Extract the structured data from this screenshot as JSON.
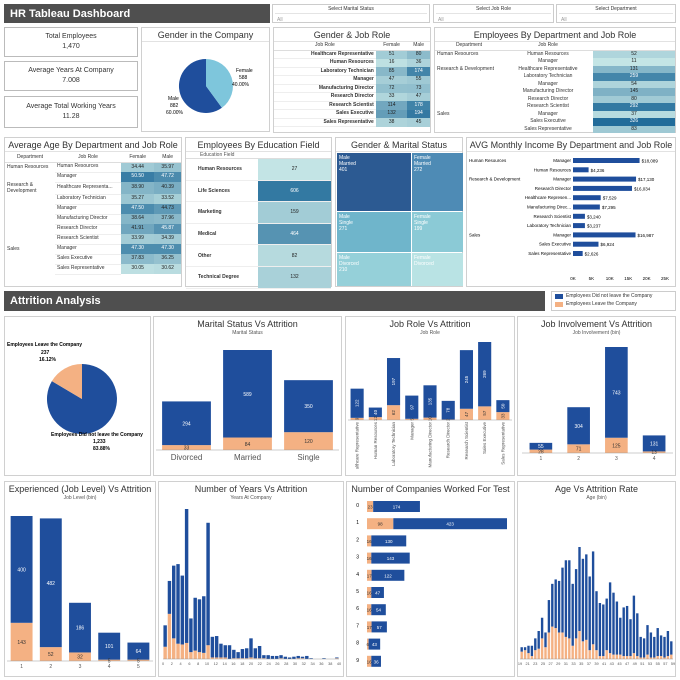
{
  "header": {
    "title": "HR Tableau Dashboard"
  },
  "filters": [
    {
      "label": "Select Marital Status",
      "value": "All"
    },
    {
      "label": "Select Job Role",
      "value": "All"
    },
    {
      "label": "Select Department",
      "value": "All"
    }
  ],
  "kpis": [
    {
      "label": "Total Employees",
      "value": "1,470"
    },
    {
      "label": "Average Years At Company",
      "value": "7.008"
    },
    {
      "label": "Average Total Working Years",
      "value": "11.28"
    }
  ],
  "colors": {
    "navy": "#1f4e9c",
    "orange": "#f4b183",
    "teal1": "#a8dfe0",
    "teal2": "#6fb7cc",
    "teal3": "#3f86a6",
    "dark": "#1f497d"
  },
  "gender_company": {
    "title": "Gender in the Company",
    "female": {
      "label": "Female",
      "count": "588",
      "pct": "40.00%"
    },
    "male": {
      "label": "Male",
      "count": "882",
      "pct": "60.00%"
    }
  },
  "gender_job": {
    "title": "Gender & Job Role",
    "headers": [
      "Job Role",
      "Female",
      "Male"
    ],
    "rows": [
      [
        "Healthcare Representative",
        "51",
        "80"
      ],
      [
        "Human Resources",
        "16",
        "36"
      ],
      [
        "Laboratory Technician",
        "85",
        "174"
      ],
      [
        "Manager",
        "47",
        "55"
      ],
      [
        "Manufacturing Director",
        "72",
        "73"
      ],
      [
        "Research Director",
        "33",
        "47"
      ],
      [
        "Research Scientist",
        "114",
        "178"
      ],
      [
        "Sales Executive",
        "132",
        "194"
      ],
      [
        "Sales Representative",
        "38",
        "45"
      ]
    ]
  },
  "emp_dept_role": {
    "title": "Employees By Department and Job Role",
    "headers": [
      "Department",
      "Job Role",
      ""
    ],
    "rows": [
      [
        "Human Resources",
        "Human Resources",
        "52"
      ],
      [
        "",
        "Manager",
        "11"
      ],
      [
        "Research & Development",
        "Healthcare Representative",
        "131"
      ],
      [
        "",
        "Laboratory Technician",
        "259"
      ],
      [
        "",
        "Manager",
        "54"
      ],
      [
        "",
        "Manufacturing Director",
        "145"
      ],
      [
        "",
        "Research Director",
        "80"
      ],
      [
        "",
        "Research Scientist",
        "292"
      ],
      [
        "Sales",
        "Manager",
        "37"
      ],
      [
        "",
        "Sales Executive",
        "326"
      ],
      [
        "",
        "Sales Representative",
        "83"
      ]
    ]
  },
  "age_dept_role": {
    "title": "Average Age By Department and Job Role",
    "headers": [
      "Department",
      "Job Role",
      "Female",
      "Male"
    ],
    "rows": [
      [
        "Human Resources",
        "Human Resources",
        "34.44",
        "35.97"
      ],
      [
        "",
        "Manager",
        "50.50",
        "47.72"
      ],
      [
        "Research & Development",
        "Healthcare Representa...",
        "38.90",
        "40.39"
      ],
      [
        "",
        "Laboratory Technician",
        "35.27",
        "33.52"
      ],
      [
        "",
        "Manager",
        "47.50",
        "44.73"
      ],
      [
        "",
        "Manufacturing Director",
        "38.64",
        "37.96"
      ],
      [
        "",
        "Research Director",
        "41.91",
        "45.87"
      ],
      [
        "",
        "Research Scientist",
        "33.99",
        "34.39"
      ],
      [
        "Sales",
        "Manager",
        "47.30",
        "47.30"
      ],
      [
        "",
        "Sales Executive",
        "37.83",
        "36.25"
      ],
      [
        "",
        "Sales Representative",
        "30.05",
        "30.62"
      ]
    ]
  },
  "edu_field": {
    "title": "Employees By Education Field",
    "header": "Education Field",
    "rows": [
      [
        "Human Resources",
        "27"
      ],
      [
        "Life Sciences",
        "606"
      ],
      [
        "Marketing",
        "159"
      ],
      [
        "Medical",
        "464"
      ],
      [
        "Other",
        "82"
      ],
      [
        "Technical Degree",
        "132"
      ]
    ]
  },
  "gender_marital": {
    "title": "Gender & Marital Status",
    "cells": [
      {
        "line1": "Male",
        "line2": "Married",
        "value": "401"
      },
      {
        "line1": "Female",
        "line2": "Married",
        "value": "272"
      },
      {
        "line1": "Male",
        "line2": "Single",
        "value": "271"
      },
      {
        "line1": "Female",
        "line2": "Single",
        "value": "199"
      },
      {
        "line1": "Male",
        "line2": "Divorced",
        "value": "210"
      },
      {
        "line1": "Female",
        "line2": "Divorced",
        "value": ""
      }
    ]
  },
  "income": {
    "title": "AVG Monthly Income By Department and Job Role",
    "headers": [
      "Department",
      "Job Role"
    ],
    "rows": [
      {
        "dept": "Human Resources",
        "role": "Manager",
        "value": 18089,
        "label": "$18,089"
      },
      {
        "dept": "",
        "role": "Human Resources",
        "value": 4236,
        "label": "$4,236"
      },
      {
        "dept": "Research & Development",
        "role": "Manager",
        "value": 17130,
        "label": "$17,130"
      },
      {
        "dept": "",
        "role": "Research Director",
        "value": 16034,
        "label": "$16,034"
      },
      {
        "dept": "",
        "role": "Healthcare Represen...",
        "value": 7529,
        "label": "$7,529"
      },
      {
        "dept": "",
        "role": "Manufacturing Direc...",
        "value": 7295,
        "label": "$7,295"
      },
      {
        "dept": "",
        "role": "Research Scientist",
        "value": 3240,
        "label": "$3,240"
      },
      {
        "dept": "",
        "role": "Laboratory Technician",
        "value": 3237,
        "label": "$3,237"
      },
      {
        "dept": "Sales",
        "role": "Manager",
        "value": 16987,
        "label": "$16,987"
      },
      {
        "dept": "",
        "role": "Sales Executive",
        "value": 6924,
        "label": "$6,924"
      },
      {
        "dept": "",
        "role": "Sales Representative",
        "value": 2626,
        "label": "$2,626"
      }
    ],
    "ticks": [
      "0K",
      "5K",
      "10K",
      "15K",
      "20K",
      "25K"
    ]
  },
  "attrition": {
    "title": "Attrition Analysis"
  },
  "legend": {
    "stay": "Employees Did not leave the Company",
    "leave": "Employees Leave the Company"
  },
  "attr_pie": {
    "leave": {
      "label": "Employees Leave the Company",
      "count": "237",
      "pct": "16.12%"
    },
    "stay": {
      "label": "Employees Did not leave the Company",
      "count": "1,233",
      "pct": "83.88%"
    }
  },
  "chart_data": [
    {
      "id": "marital",
      "type": "bar",
      "title": "Marital Status Vs Attrition",
      "xlabel": "Marital Status",
      "categories": [
        "Divorced",
        "Married",
        "Single"
      ],
      "series": [
        {
          "name": "Employees Did not leave the Company",
          "values": [
            294,
            589,
            350
          ]
        },
        {
          "name": "Employees Leave the Company",
          "values": [
            33,
            84,
            120
          ]
        }
      ]
    },
    {
      "id": "jobrole",
      "type": "bar",
      "title": "Job Role Vs Attrition",
      "xlabel": "Job Role",
      "categories": [
        "Healthcare Representative",
        "Human Resources",
        "Laboratory Technician",
        "Manager",
        "Manufacturing Director",
        "Research Director",
        "Research Scientist",
        "Sales Executive",
        "Sales Representative"
      ],
      "series": [
        {
          "name": "Employees Did not leave the Company",
          "values": [
            122,
            40,
            197,
            97,
            135,
            78,
            245,
            269,
            50
          ]
        },
        {
          "name": "Employees Leave the Company",
          "values": [
            9,
            12,
            62,
            5,
            10,
            2,
            47,
            57,
            33
          ]
        }
      ]
    },
    {
      "id": "involve",
      "type": "bar",
      "title": "Job Involvement Vs Attrition",
      "xlabel": "Job Involvement (bin)",
      "categories": [
        "1",
        "2",
        "3",
        "4"
      ],
      "series": [
        {
          "name": "Employees Did not leave the Company",
          "values": [
            55,
            304,
            743,
            131
          ]
        },
        {
          "name": "Employees Leave the Company",
          "values": [
            28,
            71,
            125,
            13
          ]
        }
      ]
    },
    {
      "id": "joblevel",
      "type": "bar",
      "title": "Experienced (Job Level) Vs Attrition",
      "xlabel": "Job Level (bin)",
      "categories": [
        "1",
        "2",
        "3",
        "4",
        "5"
      ],
      "series": [
        {
          "name": "Employees Did not leave the Company",
          "values": [
            400,
            482,
            186,
            101,
            64
          ]
        },
        {
          "name": "Employees Leave the Company",
          "values": [
            143,
            52,
            32,
            5,
            5
          ]
        }
      ]
    },
    {
      "id": "years",
      "type": "bar",
      "title": "Number of Years Vs Attrition",
      "xlabel": "Years At Company",
      "ticks": [
        "0",
        "2",
        "4",
        "6",
        "8",
        "10",
        "12",
        "14",
        "16",
        "18",
        "20",
        "22",
        "24",
        "26",
        "28",
        "30",
        "32",
        "34",
        "36",
        "38",
        "40"
      ],
      "series": [
        {
          "name": "Employees Did not leave the Company",
          "values": [
            28,
            43,
            95,
            104,
            90,
            175,
            44,
            69,
            69,
            74,
            160,
            27,
            28,
            18,
            16,
            18,
            11,
            8,
            12,
            13,
            25,
            13,
            16,
            4,
            5,
            4,
            4,
            4,
            3,
            2,
            3,
            3,
            2,
            4,
            1,
            0,
            0,
            1,
            0,
            0,
            1
          ]
        },
        {
          "name": "Employees Leave the Company",
          "values": [
            16,
            59,
            27,
            20,
            19,
            21,
            9,
            11,
            9,
            8,
            18,
            2,
            2,
            2,
            2,
            0,
            1,
            1,
            1,
            1,
            2,
            1,
            1,
            1,
            0,
            0,
            0,
            1,
            0,
            0,
            0,
            1,
            1,
            0,
            0,
            0,
            0,
            0,
            0,
            0,
            1
          ]
        }
      ]
    },
    {
      "id": "companies",
      "type": "bar",
      "orientation": "horizontal",
      "title": "Number of Companies Worked For Test",
      "categories": [
        "0",
        "1",
        "2",
        "3",
        "4",
        "5",
        "6",
        "7",
        "8",
        "9"
      ],
      "series": [
        {
          "name": "Employees Did not leave the Company",
          "values": [
            174,
            423,
            130,
            143,
            122,
            47,
            54,
            57,
            43,
            36
          ]
        },
        {
          "name": "Employees Leave the Company",
          "values": [
            23,
            98,
            16,
            16,
            17,
            16,
            16,
            17,
            6,
            16
          ]
        }
      ]
    },
    {
      "id": "age",
      "type": "bar",
      "title": "Age Vs Attrition Rate",
      "xlabel": "Age (bin)",
      "ticks": [
        "19",
        "21",
        "23",
        "25",
        "27",
        "29",
        "31",
        "33",
        "35",
        "37",
        "39",
        "41",
        "43",
        "45",
        "47",
        "49",
        "51",
        "53",
        "55",
        "57",
        "59"
      ],
      "series": [
        {
          "name": "Employees Did not leave the Company",
          "values": [
            3,
            2,
            5,
            7,
            8,
            12,
            14,
            10,
            22,
            29,
            33,
            35,
            44,
            52,
            53,
            42,
            47,
            57,
            56,
            58,
            50,
            63,
            40,
            36,
            35,
            35,
            48,
            42,
            36,
            25,
            33,
            34,
            25,
            39,
            29,
            14,
            13,
            20,
            17,
            14,
            19,
            14,
            14,
            17,
            9
          ]
        },
        {
          "name": "Employees Leave the Company",
          "values": [
            5,
            6,
            4,
            2,
            6,
            7,
            14,
            8,
            18,
            22,
            21,
            18,
            18,
            15,
            14,
            9,
            14,
            19,
            12,
            13,
            6,
            10,
            6,
            2,
            2,
            6,
            4,
            3,
            3,
            3,
            2,
            2,
            2,
            4,
            2,
            1,
            1,
            3,
            1,
            1,
            2,
            2,
            1,
            2,
            3
          ]
        }
      ]
    }
  ]
}
